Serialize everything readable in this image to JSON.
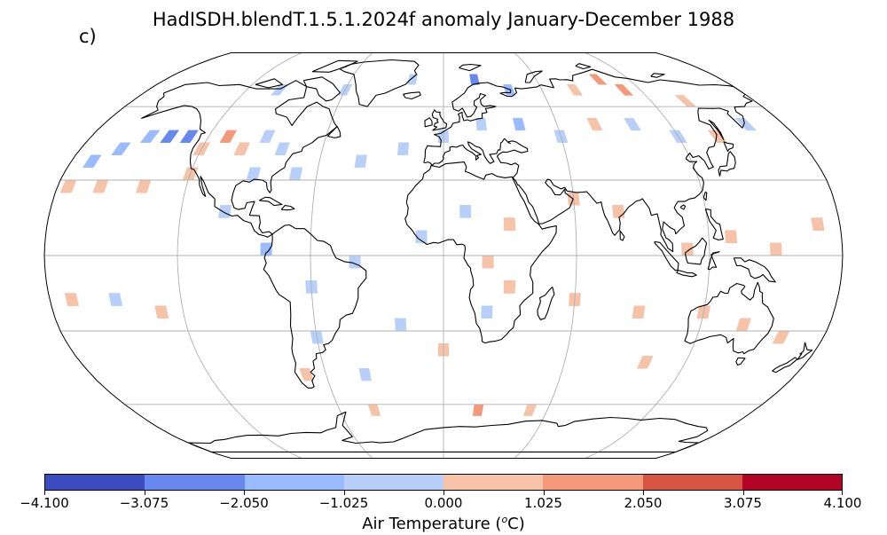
{
  "title": "HadISDH.blendT.1.5.1.2024f anomaly January-December 1988",
  "panel_label": "c)",
  "colorbar": {
    "label_prefix": "Air Temperature (",
    "label_sup": "o",
    "label_suffix": "C)",
    "ticks": [
      "−4.100",
      "−3.075",
      "−2.050",
      "−1.025",
      "0.000",
      "1.025",
      "2.050",
      "3.075",
      "4.100"
    ],
    "colors": [
      "#3b4cc0",
      "#6788ee",
      "#9abbff",
      "#b8d0f9",
      "#f6c2a8",
      "#f49a7b",
      "#d75445",
      "#b40426"
    ]
  },
  "map": {
    "projection": "robinson",
    "background": "#ffffff",
    "gridline_color": "#b0b0b0",
    "coastline_color": "#000000",
    "anomaly_cells": [
      {
        "lon": -170,
        "lat": 37.5,
        "v": -1.4
      },
      {
        "lon": -160,
        "lat": 42.5,
        "v": -1.5
      },
      {
        "lon": -150,
        "lat": 47.5,
        "v": -1.6
      },
      {
        "lon": -140,
        "lat": 47.5,
        "v": -2.1
      },
      {
        "lon": -130,
        "lat": 47.5,
        "v": -2.2
      },
      {
        "lon": -120,
        "lat": 42.5,
        "v": 0.6
      },
      {
        "lon": -110,
        "lat": 47.5,
        "v": 1.3
      },
      {
        "lon": -100,
        "lat": 42.5,
        "v": 0.7
      },
      {
        "lon": -90,
        "lat": 47.5,
        "v": -0.7
      },
      {
        "lon": -80,
        "lat": 42.5,
        "v": -0.6
      },
      {
        "lon": -160,
        "lat": 27.5,
        "v": 0.5
      },
      {
        "lon": -175,
        "lat": 27.5,
        "v": 0.6
      },
      {
        "lon": -140,
        "lat": 27.5,
        "v": 0.4
      },
      {
        "lon": -120,
        "lat": 32.5,
        "v": 0.5
      },
      {
        "lon": -90,
        "lat": 32.5,
        "v": -0.8
      },
      {
        "lon": -70,
        "lat": 32.5,
        "v": -0.5
      },
      {
        "lon": -40,
        "lat": 37.5,
        "v": -0.6
      },
      {
        "lon": -20,
        "lat": 42.5,
        "v": -0.5
      },
      {
        "lon": 0,
        "lat": 47.5,
        "v": -0.7
      },
      {
        "lon": 20,
        "lat": 52.5,
        "v": -0.8
      },
      {
        "lon": 40,
        "lat": 52.5,
        "v": -1.1
      },
      {
        "lon": 60,
        "lat": 47.5,
        "v": -0.6
      },
      {
        "lon": 80,
        "lat": 52.5,
        "v": 0.4
      },
      {
        "lon": 100,
        "lat": 52.5,
        "v": -0.5
      },
      {
        "lon": 120,
        "lat": 47.5,
        "v": -0.6
      },
      {
        "lon": 140,
        "lat": 47.5,
        "v": 0.5
      },
      {
        "lon": 160,
        "lat": 52.5,
        "v": -0.4
      },
      {
        "lon": 40,
        "lat": 67.5,
        "v": -1.4
      },
      {
        "lon": 80,
        "lat": 67.5,
        "v": 0.6
      },
      {
        "lon": 110,
        "lat": 67.5,
        "v": 1.2
      },
      {
        "lon": -100,
        "lat": 67.5,
        "v": -0.7
      },
      {
        "lon": -60,
        "lat": 67.5,
        "v": -0.6
      },
      {
        "lon": -20,
        "lat": 72.5,
        "v": -0.9
      },
      {
        "lon": 20,
        "lat": 72.5,
        "v": -2.3
      },
      {
        "lon": 100,
        "lat": 72.5,
        "v": 1.4
      },
      {
        "lon": 140,
        "lat": 62.5,
        "v": 0.8
      },
      {
        "lon": 10,
        "lat": 17.5,
        "v": -0.5
      },
      {
        "lon": 30,
        "lat": 12.5,
        "v": 0.4
      },
      {
        "lon": -10,
        "lat": 7.5,
        "v": -0.6
      },
      {
        "lon": 20,
        "lat": -2.5,
        "v": 0.5
      },
      {
        "lon": 30,
        "lat": -12.5,
        "v": 0.6
      },
      {
        "lon": 20,
        "lat": -22.5,
        "v": -0.5
      },
      {
        "lon": 60,
        "lat": -17.5,
        "v": 0.5
      },
      {
        "lon": 90,
        "lat": -22.5,
        "v": 0.6
      },
      {
        "lon": 120,
        "lat": -22.5,
        "v": 0.7
      },
      {
        "lon": 140,
        "lat": -27.5,
        "v": 0.6
      },
      {
        "lon": 160,
        "lat": -32.5,
        "v": 0.5
      },
      {
        "lon": 110,
        "lat": 2.5,
        "v": 0.6
      },
      {
        "lon": 130,
        "lat": 7.5,
        "v": 0.5
      },
      {
        "lon": 150,
        "lat": 2.5,
        "v": 0.7
      },
      {
        "lon": 170,
        "lat": 12.5,
        "v": 0.5
      },
      {
        "lon": 80,
        "lat": 17.5,
        "v": 0.5
      },
      {
        "lon": 60,
        "lat": 22.5,
        "v": 0.4
      },
      {
        "lon": -40,
        "lat": -2.5,
        "v": -0.6
      },
      {
        "lon": -60,
        "lat": -12.5,
        "v": -0.5
      },
      {
        "lon": -60,
        "lat": -32.5,
        "v": -0.6
      },
      {
        "lon": -70,
        "lat": -47.5,
        "v": 0.6
      },
      {
        "lon": -80,
        "lat": 2.5,
        "v": -1.2
      },
      {
        "lon": -100,
        "lat": 17.5,
        "v": -0.5
      },
      {
        "lon": -170,
        "lat": -17.5,
        "v": 0.6
      },
      {
        "lon": -150,
        "lat": -17.5,
        "v": -0.6
      },
      {
        "lon": -130,
        "lat": -22.5,
        "v": 0.5
      },
      {
        "lon": -20,
        "lat": -27.5,
        "v": -0.4
      },
      {
        "lon": 0,
        "lat": -37.5,
        "v": 0.5
      },
      {
        "lon": -40,
        "lat": -47.5,
        "v": -0.5
      },
      {
        "lon": -40,
        "lat": -62.5,
        "v": 0.6
      },
      {
        "lon": 20,
        "lat": -62.5,
        "v": 1.3
      },
      {
        "lon": 50,
        "lat": -62.5,
        "v": 0.6
      },
      {
        "lon": 100,
        "lat": -42.5,
        "v": 0.5
      }
    ]
  }
}
